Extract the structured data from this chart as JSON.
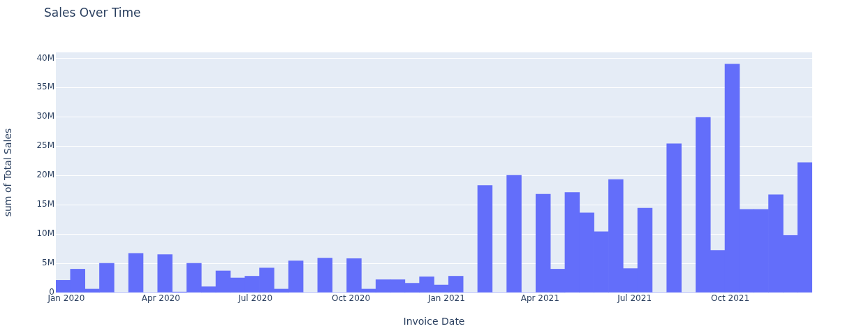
{
  "chart_data": {
    "type": "histogram",
    "title": "Sales Over Time",
    "xlabel": "Invoice Date",
    "ylabel": "sum of Total Sales",
    "color": "#636efa",
    "bins": [
      "2019-12-22",
      "2020-01-05",
      "2020-01-19",
      "2020-02-02",
      "2020-02-16",
      "2020-03-01",
      "2020-03-15",
      "2020-03-29",
      "2020-04-12",
      "2020-04-26",
      "2020-05-10",
      "2020-05-24",
      "2020-06-07",
      "2020-06-21",
      "2020-07-05",
      "2020-07-19",
      "2020-08-02",
      "2020-08-16",
      "2020-08-30",
      "2020-09-13",
      "2020-09-27",
      "2020-10-11",
      "2020-10-25",
      "2020-11-08",
      "2020-11-22",
      "2020-12-06",
      "2020-12-20",
      "2021-01-03",
      "2021-01-17",
      "2021-01-31",
      "2021-02-14",
      "2021-02-28",
      "2021-03-14",
      "2021-03-28",
      "2021-04-11",
      "2021-04-25",
      "2021-05-09",
      "2021-05-23",
      "2021-06-06",
      "2021-06-20",
      "2021-07-04",
      "2021-07-18",
      "2021-08-01",
      "2021-08-15",
      "2021-08-29",
      "2021-09-12",
      "2021-09-26",
      "2021-10-10",
      "2021-10-24",
      "2021-11-07",
      "2021-11-21",
      "2021-12-05",
      "2021-12-19"
    ],
    "values": [
      2100000,
      4000000,
      600000,
      5000000,
      0,
      6700000,
      0,
      6500000,
      100000,
      5000000,
      1000000,
      3700000,
      2500000,
      2800000,
      4200000,
      600000,
      5400000,
      0,
      5900000,
      0,
      5800000,
      600000,
      2200000,
      2200000,
      1600000,
      2700000,
      1300000,
      2800000,
      0,
      18300000,
      0,
      20000000,
      0,
      16800000,
      4000000,
      17100000,
      13600000,
      10400000,
      19300000,
      4100000,
      14400000,
      0,
      25400000,
      0,
      29900000,
      7200000,
      39000000,
      14200000,
      14200000,
      16700000,
      9800000,
      22200000
    ],
    "xlim": [
      "2019-12-22",
      "2021-12-19"
    ],
    "xticks": [
      {
        "value": "2020-01-01",
        "label": "Jan 2020"
      },
      {
        "value": "2020-04-01",
        "label": "Apr 2020"
      },
      {
        "value": "2020-07-01",
        "label": "Jul 2020"
      },
      {
        "value": "2020-10-01",
        "label": "Oct 2020"
      },
      {
        "value": "2021-01-01",
        "label": "Jan 2021"
      },
      {
        "value": "2021-04-01",
        "label": "Apr 2021"
      },
      {
        "value": "2021-07-01",
        "label": "Jul 2021"
      },
      {
        "value": "2021-10-01",
        "label": "Oct 2021"
      }
    ],
    "ylim": [
      0,
      41000000
    ],
    "yticks": [
      {
        "value": 0,
        "label": "0"
      },
      {
        "value": 5000000,
        "label": "5M"
      },
      {
        "value": 10000000,
        "label": "10M"
      },
      {
        "value": 15000000,
        "label": "15M"
      },
      {
        "value": 20000000,
        "label": "20M"
      },
      {
        "value": 25000000,
        "label": "25M"
      },
      {
        "value": 30000000,
        "label": "30M"
      },
      {
        "value": 35000000,
        "label": "35M"
      },
      {
        "value": 40000000,
        "label": "40M"
      }
    ],
    "grid": "y"
  }
}
